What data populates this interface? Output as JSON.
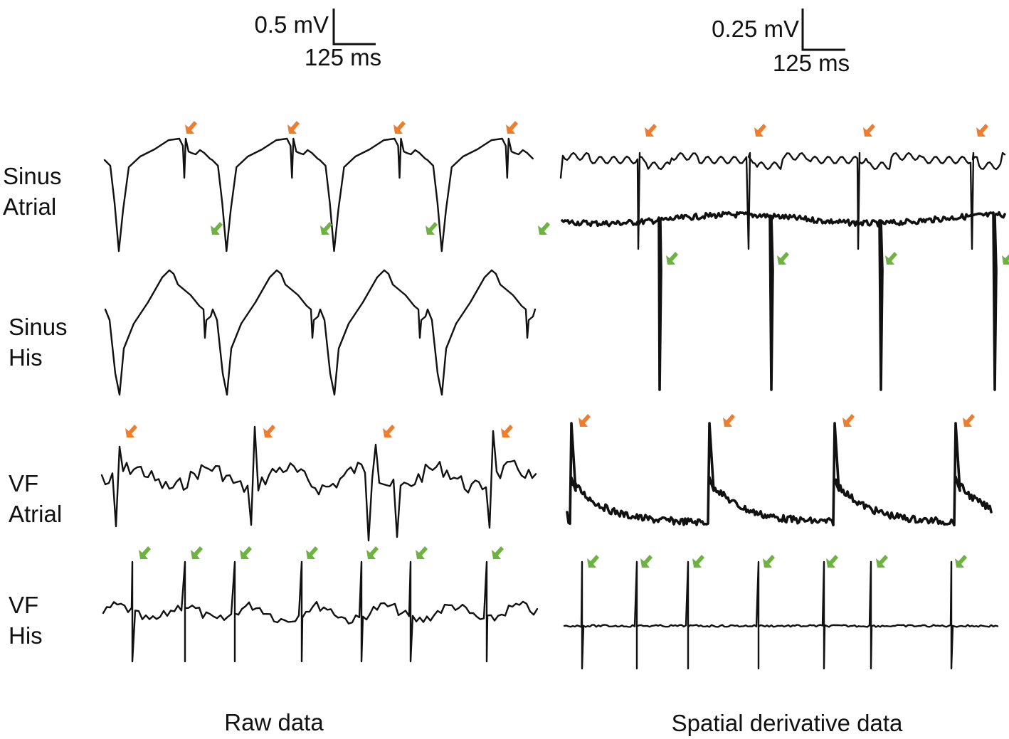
{
  "colors": {
    "trace": "#111111",
    "orange_arrow": "#f07d2e",
    "green_arrow": "#6db33f"
  },
  "scale_bars": {
    "raw": {
      "voltage": "0.5 mV",
      "time": "125 ms"
    },
    "derivative": {
      "voltage": "0.25 mV",
      "time": "125 ms"
    }
  },
  "rows": [
    {
      "id": "sinus-atrial",
      "line1": "Sinus",
      "line2": "Atrial",
      "arrow_color": "orange"
    },
    {
      "id": "sinus-his",
      "line1": "Sinus",
      "line2": "His",
      "arrow_color": "green"
    },
    {
      "id": "vf-atrial",
      "line1": "VF",
      "line2": "Atrial",
      "arrow_color": "orange"
    },
    {
      "id": "vf-his",
      "line1": "VF",
      "line2": "His",
      "arrow_color": "green"
    }
  ],
  "columns": {
    "raw": "Raw data",
    "derivative": "Spatial derivative data"
  },
  "arrow_counts": {
    "raw": [
      4,
      4,
      4,
      7
    ],
    "derivative": [
      4,
      4,
      4,
      7
    ]
  },
  "icons": [
    "orange-arrow-icon",
    "green-arrow-icon",
    "scale-bar-icon"
  ]
}
